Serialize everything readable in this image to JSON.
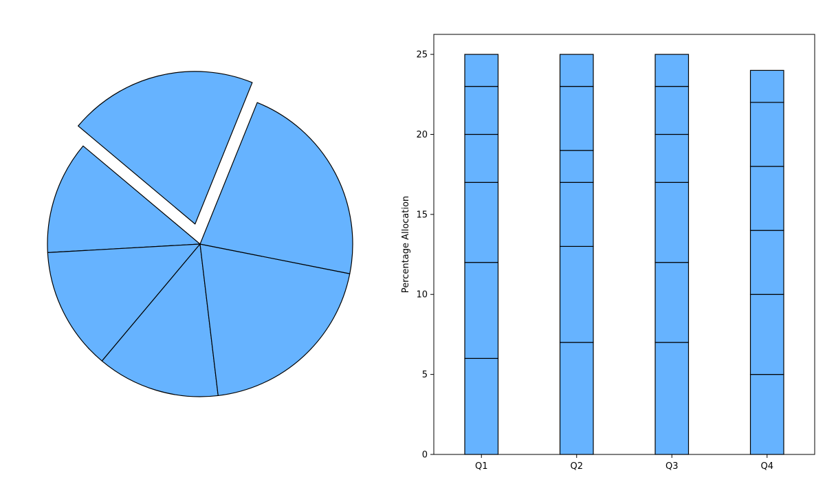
{
  "colors": {
    "fill": "#66b3ff",
    "edge": "#000000",
    "background": "#ffffff"
  },
  "chart_data": [
    {
      "type": "pie",
      "values": [
        12,
        13,
        13,
        20,
        22,
        20
      ],
      "exploded_index": 5,
      "start_angle_deg": 140,
      "direction": "counterclockwise",
      "title": "",
      "legend": "none"
    },
    {
      "type": "bar",
      "stacked": true,
      "categories": [
        "Q1",
        "Q2",
        "Q3",
        "Q4"
      ],
      "series": [
        {
          "values": [
            6,
            7,
            7,
            5
          ]
        },
        {
          "values": [
            6,
            6,
            5,
            5
          ]
        },
        {
          "values": [
            5,
            4,
            5,
            4
          ]
        },
        {
          "values": [
            3,
            2,
            3,
            4
          ]
        },
        {
          "values": [
            3,
            4,
            3,
            4
          ]
        },
        {
          "values": [
            2,
            2,
            2,
            2
          ]
        }
      ],
      "xlabel": "",
      "ylabel": "Percentage Allocation",
      "ylim": [
        0,
        26.25
      ],
      "yticks": [
        0,
        5,
        10,
        15,
        20,
        25
      ],
      "grid": false,
      "legend": "none"
    }
  ]
}
